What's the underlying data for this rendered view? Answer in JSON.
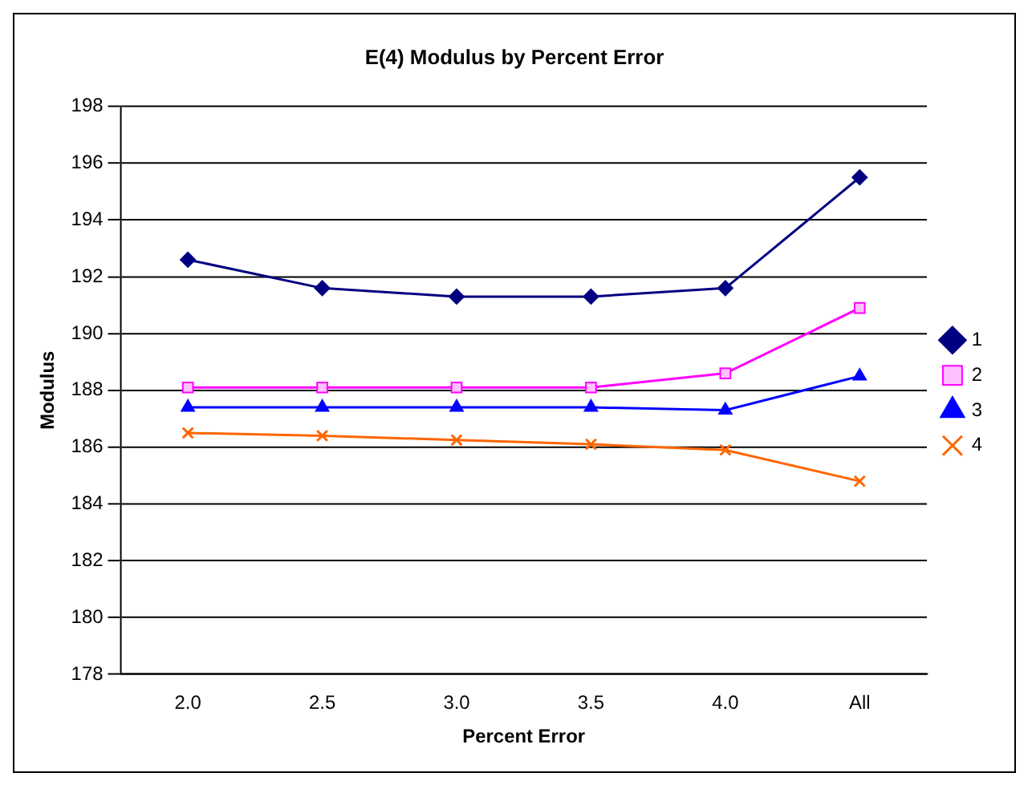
{
  "chart_data": {
    "type": "line",
    "title": "E(4) Modulus by Percent Error",
    "xlabel": "Percent Error",
    "ylabel": "Modulus",
    "categories": [
      "2.0",
      "2.5",
      "3.0",
      "3.5",
      "4.0",
      "All"
    ],
    "series": [
      {
        "name": "1",
        "color": "#000080",
        "marker": "diamond",
        "values": [
          192.6,
          191.6,
          191.3,
          191.3,
          191.6,
          195.5
        ]
      },
      {
        "name": "2",
        "color": "#ff00ff",
        "marker": "square",
        "values": [
          188.1,
          188.1,
          188.1,
          188.1,
          188.6,
          190.9
        ]
      },
      {
        "name": "3",
        "color": "#0000ff",
        "marker": "triangle",
        "values": [
          187.4,
          187.4,
          187.4,
          187.4,
          187.3,
          188.5
        ]
      },
      {
        "name": "4",
        "color": "#ff6600",
        "marker": "cross",
        "values": [
          186.5,
          186.4,
          186.25,
          186.1,
          185.9,
          184.8
        ]
      }
    ],
    "ylim": [
      178,
      198
    ],
    "yticks": [
      178,
      180,
      182,
      184,
      186,
      188,
      190,
      192,
      194,
      196,
      198
    ],
    "grid": "y",
    "legend": "right",
    "line_style": "solid"
  }
}
